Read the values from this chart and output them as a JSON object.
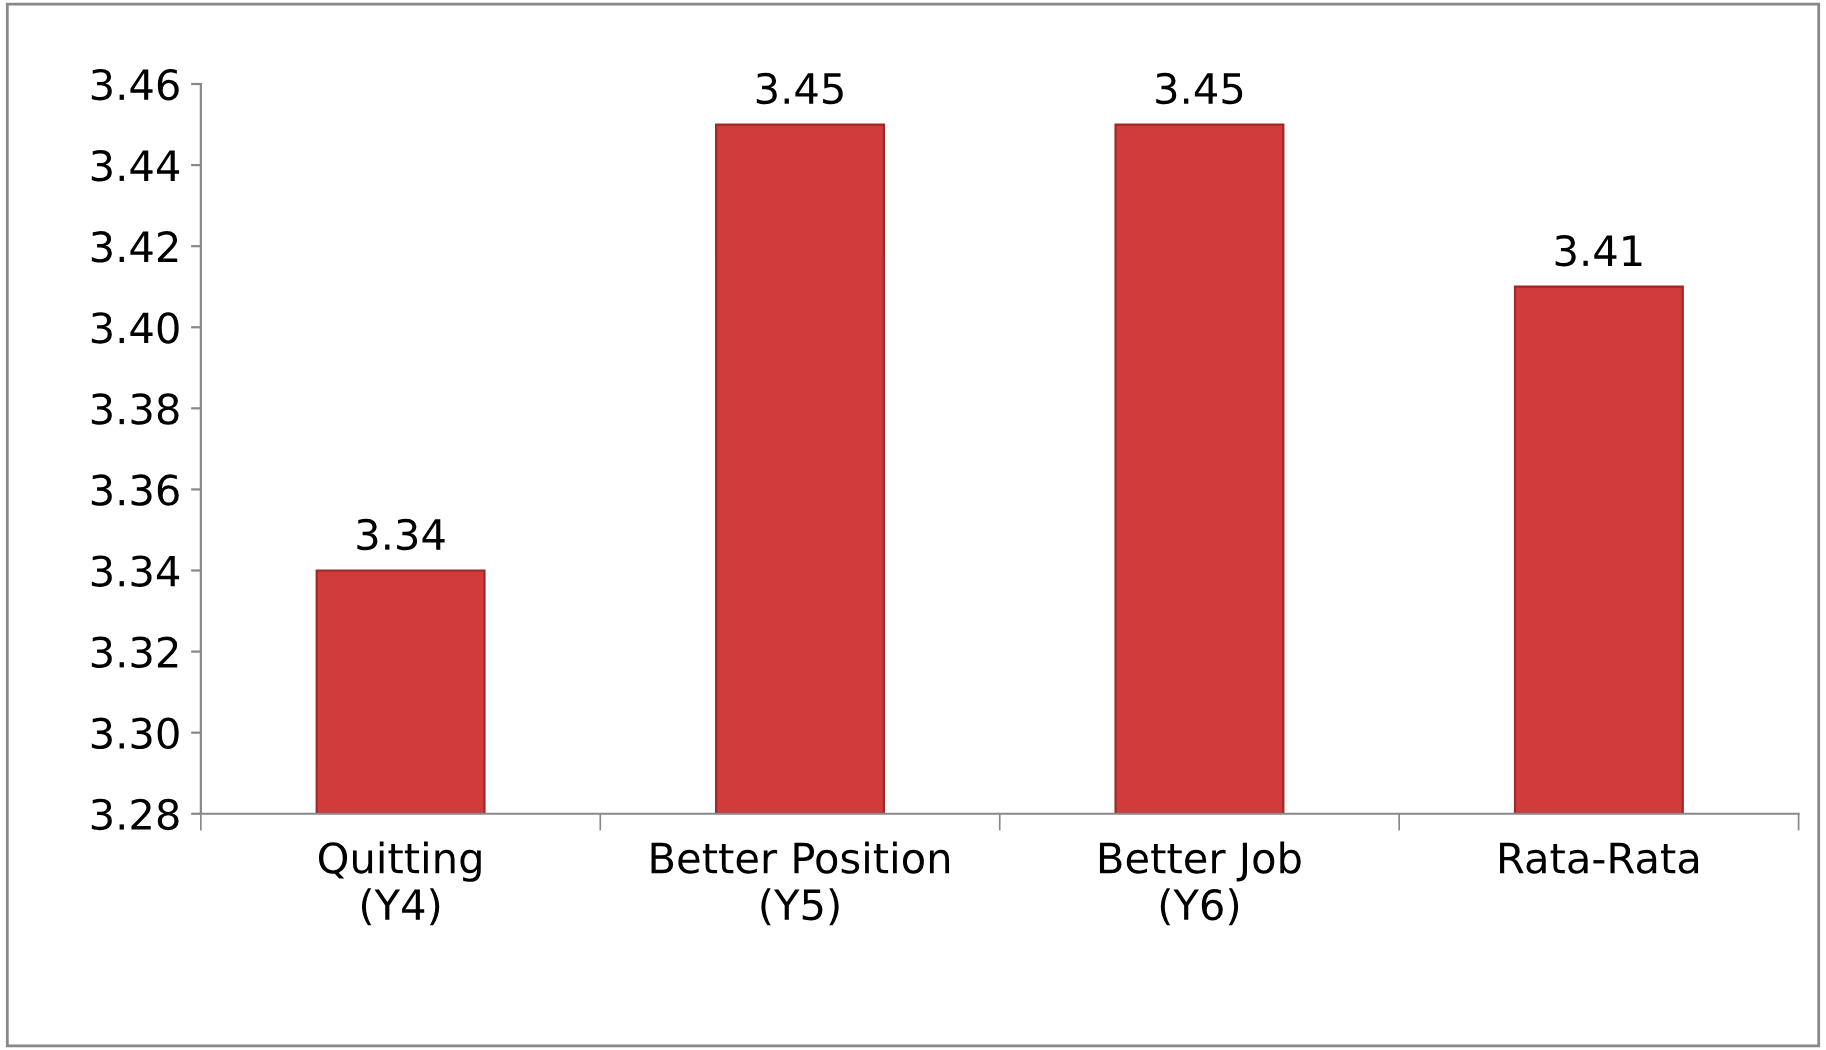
{
  "chart_data": {
    "type": "bar",
    "categories": [
      "Quitting\n(Y4)",
      "Better Position\n(Y5)",
      "Better Job\n(Y6)",
      "Rata-Rata"
    ],
    "values": [
      3.34,
      3.45,
      3.45,
      3.41
    ],
    "color": "#d13b3b",
    "ylim": [
      3.28,
      3.46
    ],
    "yticks": [
      {
        "value": 3.28,
        "label": "3.28"
      },
      {
        "value": 3.3,
        "label": "3.30"
      },
      {
        "value": 3.32,
        "label": "3.32"
      },
      {
        "value": 3.34,
        "label": "3.34"
      },
      {
        "value": 3.36,
        "label": "3.36"
      },
      {
        "value": 3.38,
        "label": "3.38"
      },
      {
        "value": 3.4,
        "label": "3.40"
      },
      {
        "value": 3.42,
        "label": "3.42"
      },
      {
        "value": 3.44,
        "label": "3.44"
      },
      {
        "value": 3.46,
        "label": "3.46"
      }
    ],
    "data_labels": true,
    "grid": false,
    "legend": false
  }
}
